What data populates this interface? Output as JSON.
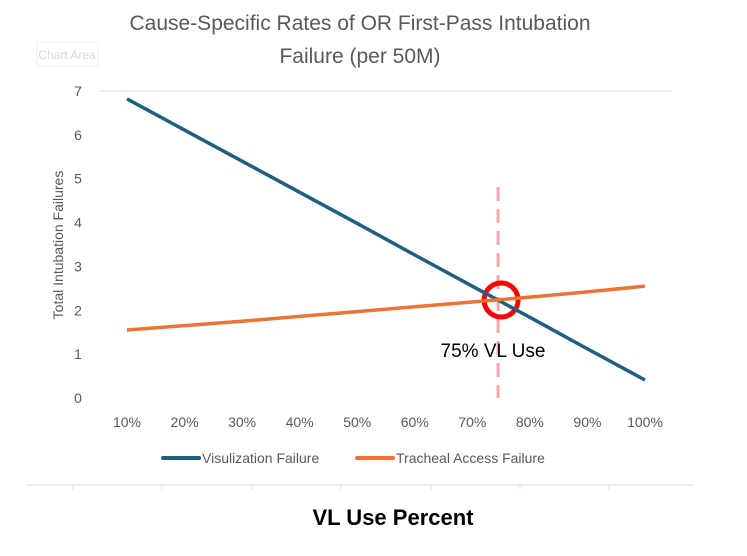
{
  "chart_data": {
    "type": "line",
    "title": "Cause-Specific Rates of OR First-Pass Intubation Failure (per 50M)",
    "title_lines": [
      "Cause-Specific Rates of OR First-Pass Intubation",
      "Failure (per 50M)"
    ],
    "xlabel": "VL Use Percent",
    "ylabel": "Total Intubation Failures",
    "categories": [
      "10%",
      "20%",
      "30%",
      "40%",
      "50%",
      "60%",
      "70%",
      "80%",
      "90%",
      "100%"
    ],
    "x": [
      10,
      20,
      30,
      40,
      50,
      60,
      70,
      80,
      90,
      100
    ],
    "ylim": [
      0,
      7
    ],
    "yticks": [
      "0",
      "1",
      "2",
      "3",
      "4",
      "5",
      "6",
      "7"
    ],
    "series": [
      {
        "name": "Visulization Failure",
        "color": "#1f5f80",
        "values": [
          6.82,
          6.11,
          5.4,
          4.69,
          3.98,
          3.26,
          2.55,
          1.84,
          1.12,
          0.41
        ]
      },
      {
        "name": "Tracheal  Access Failure",
        "color": "#eb7433",
        "values": [
          1.55,
          1.65,
          1.75,
          1.86,
          1.97,
          2.08,
          2.19,
          2.3,
          2.42,
          2.55
        ]
      }
    ],
    "annotations": {
      "marker_x": 75,
      "marker_label": "75% VL Use",
      "marker_color": "#f4a8a8",
      "circle_color": "#ff0000"
    },
    "legend": "bottom",
    "tooltip": "Chart Area"
  }
}
